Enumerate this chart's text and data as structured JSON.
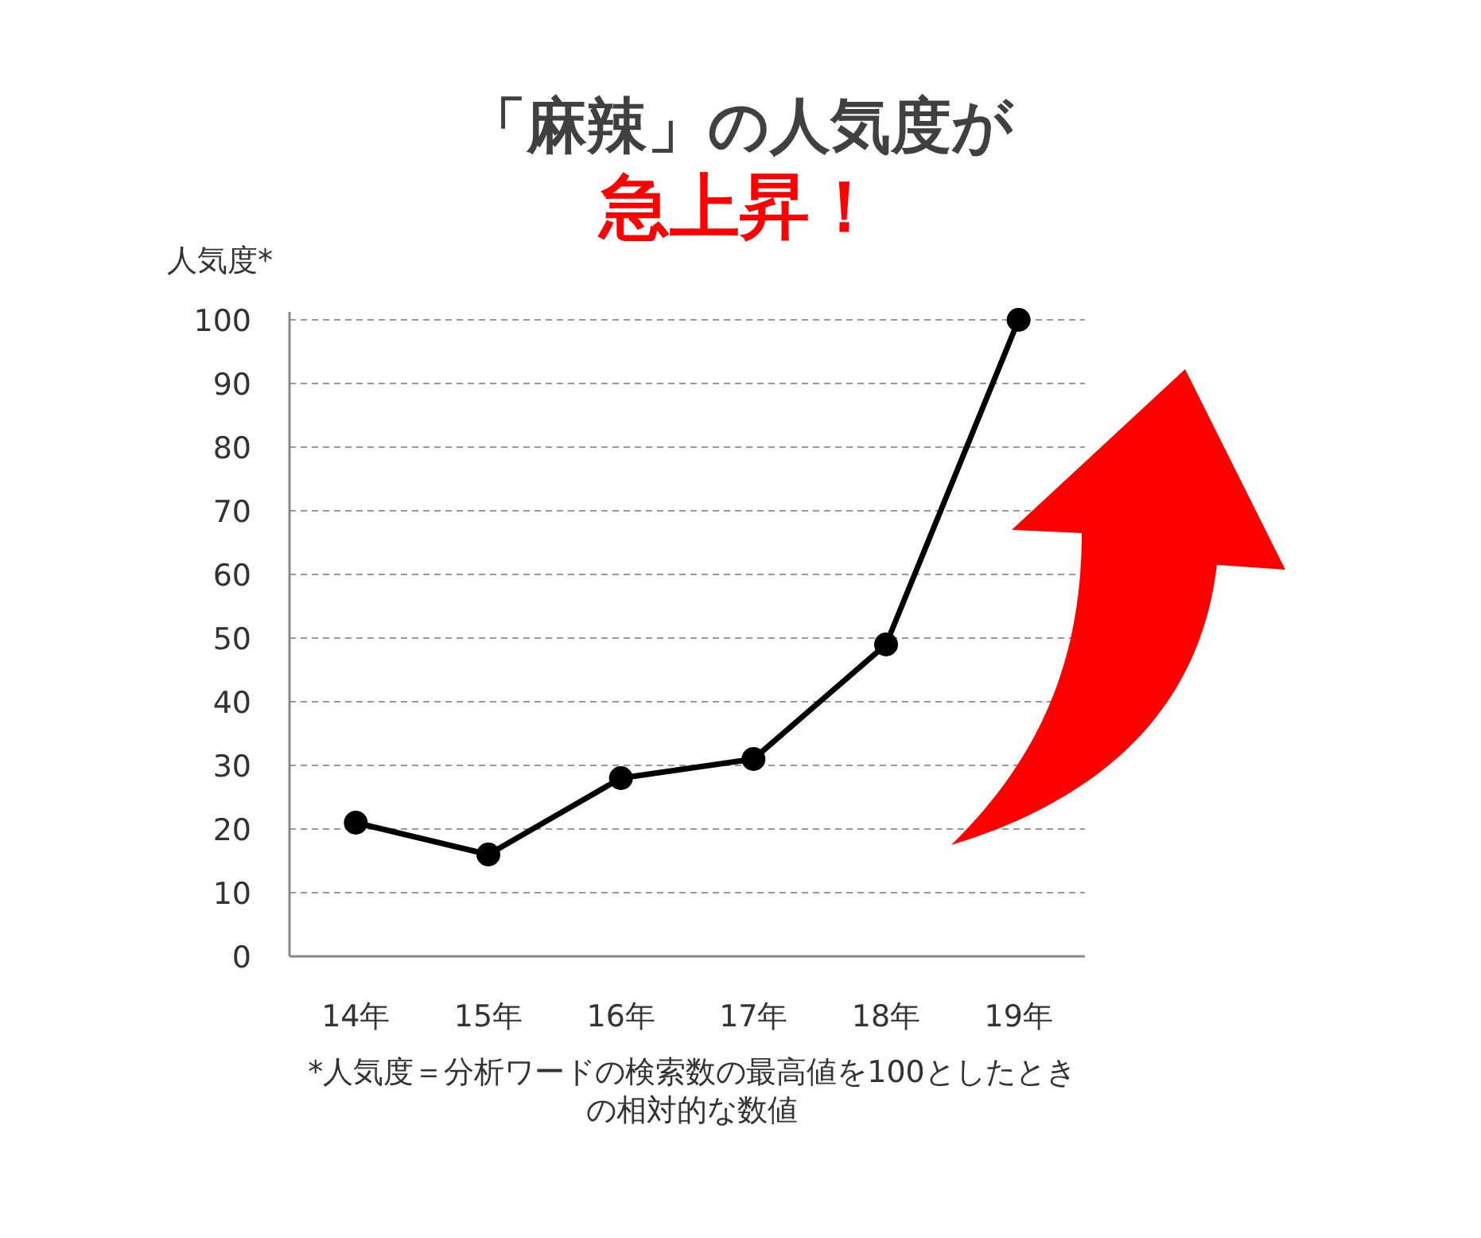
{
  "chart_data": {
    "type": "line",
    "title": "「麻辣」の人気度が",
    "subtitle": "急上昇！",
    "ylabel": "人気度*",
    "categories": [
      "14年",
      "15年",
      "16年",
      "17年",
      "18年",
      "19年"
    ],
    "series": [
      {
        "color": "#000000",
        "values": [
          21,
          16,
          28,
          31,
          49,
          100
        ]
      }
    ],
    "ylim": [
      0,
      100
    ],
    "yticks": [
      0,
      10,
      20,
      30,
      40,
      50,
      60,
      70,
      80,
      90,
      100
    ],
    "grid": "y",
    "marker": "circle",
    "line_style": "solid",
    "annotations": [
      "*人気度＝分析ワードの検索数の最高値を100としたときの相対的な数値"
    ]
  }
}
